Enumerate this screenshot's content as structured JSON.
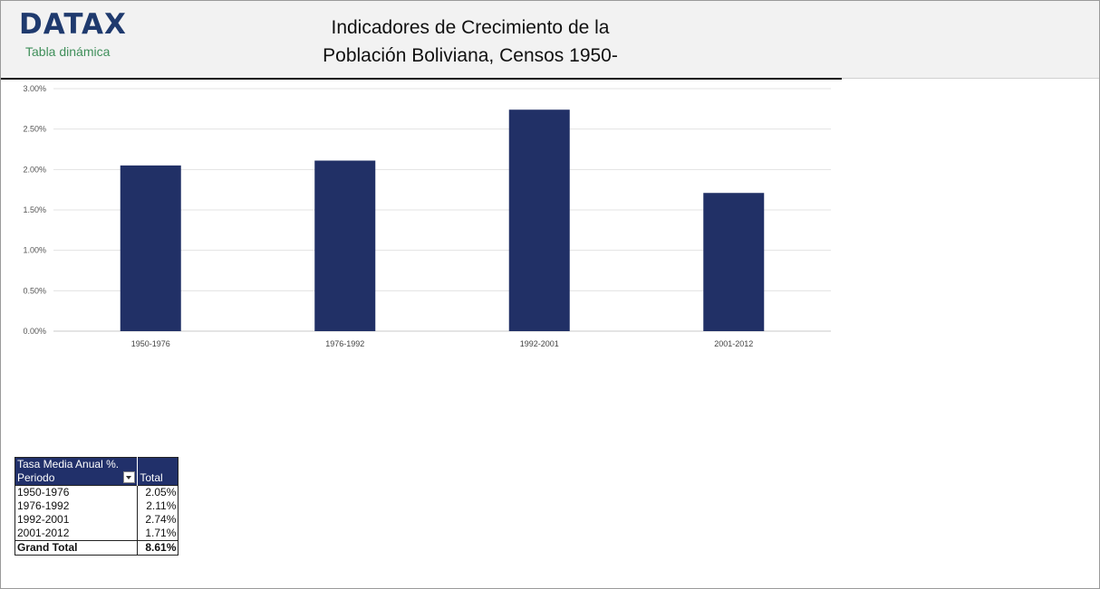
{
  "header": {
    "logo": "DATAX",
    "subtitle": "Tabla dinámica",
    "title_line1": "Indicadores de Crecimiento de la",
    "title_line2": "Población Boliviana, Censos 1950-"
  },
  "chart_data": {
    "type": "bar",
    "categories": [
      "1950-1976",
      "1976-1992",
      "1992-2001",
      "2001-2012"
    ],
    "values": [
      2.05,
      2.11,
      2.74,
      1.71
    ],
    "ylim": [
      0,
      3
    ],
    "yticks": [
      "0.00%",
      "0.50%",
      "1.00%",
      "1.50%",
      "2.00%",
      "2.50%",
      "3.00%"
    ],
    "grid": true,
    "bar_color": "#213066",
    "title": "",
    "xlabel": "",
    "ylabel": ""
  },
  "pivot": {
    "header_label": "Tasa Media Anual %.",
    "col_row_label": "Periodo",
    "col_total_label": "Total",
    "rows": [
      {
        "label": "1950-1976",
        "value": "2.05%"
      },
      {
        "label": "1976-1992",
        "value": "2.11%"
      },
      {
        "label": "1992-2001",
        "value": "2.74%"
      },
      {
        "label": "2001-2012",
        "value": "1.71%"
      }
    ],
    "grand_total_label": "Grand Total",
    "grand_total_value": "8.61%"
  }
}
